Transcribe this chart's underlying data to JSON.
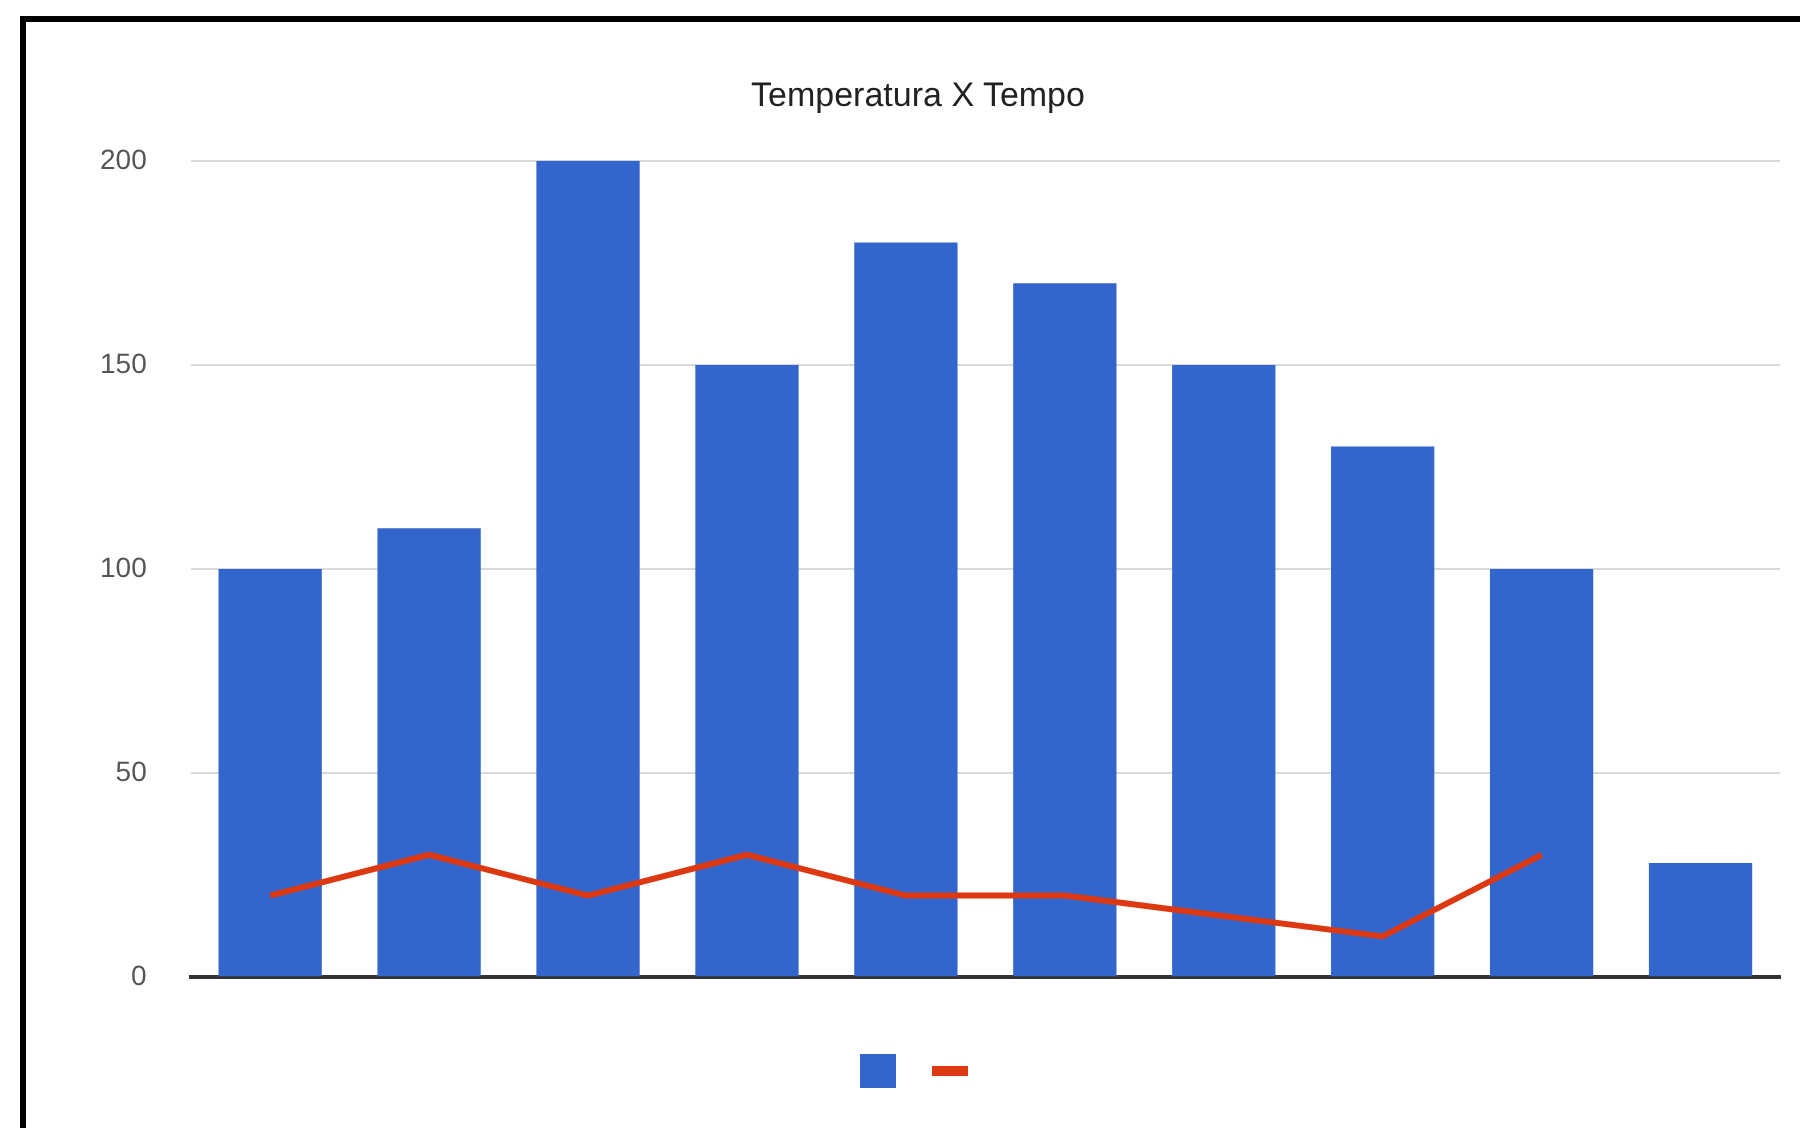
{
  "chart_data": {
    "type": "bar",
    "title": "Temperatura X Tempo",
    "categories": [
      null,
      null,
      null,
      null,
      null,
      null,
      null,
      null,
      null,
      null
    ],
    "series": [
      {
        "color": "#3366cc",
        "values": [
          100,
          110,
          200,
          150,
          180,
          170,
          150,
          130,
          100,
          28
        ]
      },
      {
        "type": "line",
        "color": "#dc3912",
        "values": [
          20,
          30,
          20,
          30,
          20,
          20,
          15,
          10,
          30,
          null
        ]
      }
    ],
    "ylim": [
      0,
      200
    ],
    "yticks": [
      0,
      50,
      100,
      150,
      200
    ],
    "grid": "y",
    "marker": "none"
  }
}
